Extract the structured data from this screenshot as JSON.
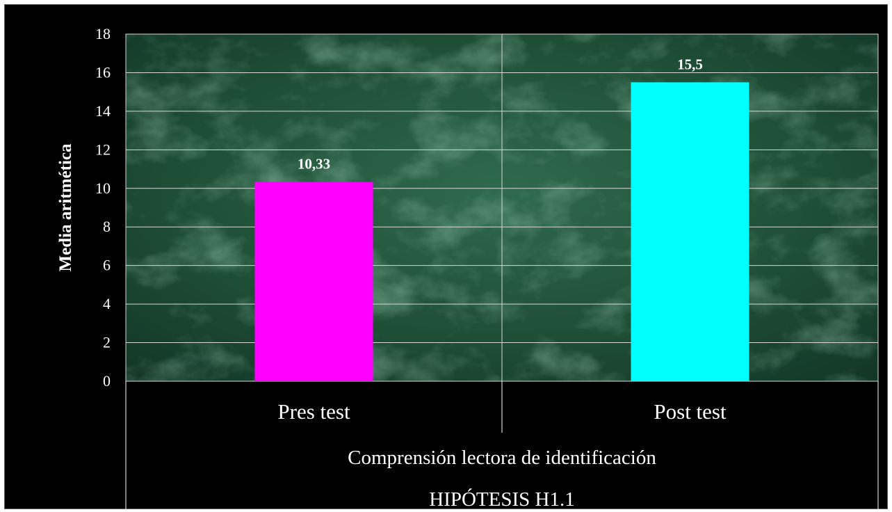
{
  "chart_data": {
    "type": "bar",
    "categories": [
      "Pres test",
      "Post test"
    ],
    "values": [
      10.33,
      15.5
    ],
    "data_labels": [
      "10,33",
      "15,5"
    ],
    "colors": [
      "#ff00ff",
      "#00ffff"
    ],
    "ylabel": "Media aritmética",
    "xlabel": "Comprensión lectora de identificación",
    "group_label": "HIPÓTESIS H1.1",
    "ylim": [
      0,
      18
    ],
    "yticks": [
      0,
      2,
      4,
      6,
      8,
      10,
      12,
      14,
      16,
      18
    ],
    "grid": true,
    "legend": "none",
    "plot_background": "green marble texture"
  }
}
